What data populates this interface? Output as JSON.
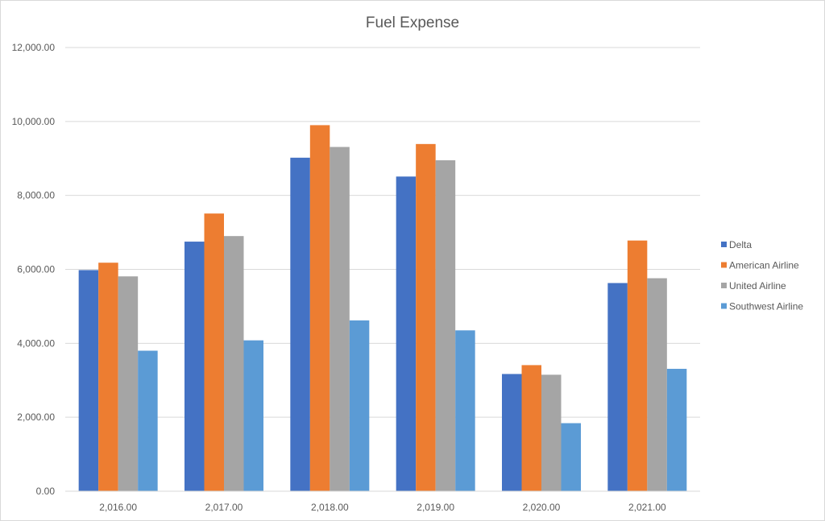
{
  "chart_data": {
    "type": "bar",
    "title": "Fuel Expense",
    "xlabel": "",
    "ylabel": "",
    "categories": [
      "2,016.00",
      "2,017.00",
      "2,018.00",
      "2,019.00",
      "2,020.00",
      "2,021.00"
    ],
    "ylim": [
      0,
      12000
    ],
    "yticks": [
      0,
      2000,
      4000,
      6000,
      8000,
      10000,
      12000
    ],
    "ytick_labels": [
      "0.00",
      "2,000.00",
      "4,000.00",
      "6,000.00",
      "8,000.00",
      "10,000.00",
      "12,000.00"
    ],
    "grid": true,
    "legend_position": "right",
    "series": [
      {
        "name": "Delta",
        "color": "#4472C4",
        "values": [
          5980,
          6750,
          9020,
          8510,
          3170,
          5630
        ]
      },
      {
        "name": "American Airline",
        "color": "#ED7D31",
        "values": [
          6180,
          7510,
          9900,
          9390,
          3410,
          6780
        ]
      },
      {
        "name": "United Airline",
        "color": "#A5A5A5",
        "values": [
          5810,
          6900,
          9310,
          8950,
          3150,
          5760
        ]
      },
      {
        "name": "Southwest Airline",
        "color": "#5B9BD5",
        "values": [
          3800,
          4080,
          4620,
          4350,
          1840,
          3310
        ]
      }
    ]
  }
}
